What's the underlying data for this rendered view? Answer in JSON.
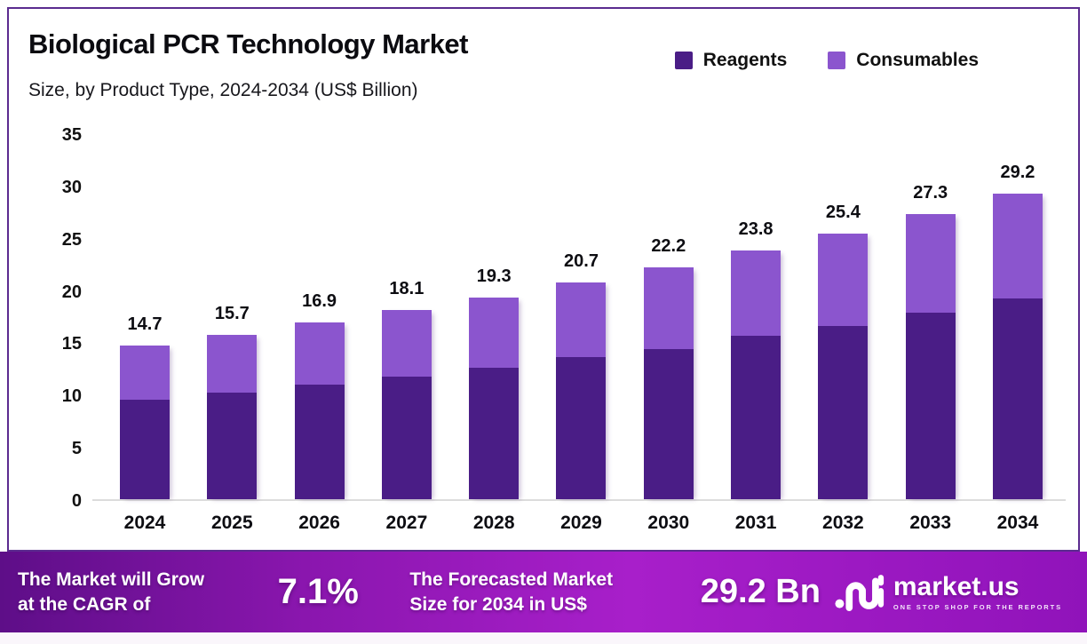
{
  "title": "Biological PCR Technology Market",
  "subtitle": "Size, by Product Type, 2024-2034 (US$ Billion)",
  "colors": {
    "reagents": "#4a1d86",
    "consumables": "#8b55ce",
    "frame_border": "#5b2b8f",
    "axis_line": "#dcdcdc",
    "banner_gradient_left": "#5e0e88",
    "banner_gradient_mid": "#a81fca",
    "banner_gradient_right": "#9013ba",
    "banner_text": "#ffffff"
  },
  "legend": {
    "items": [
      {
        "label": "Reagents",
        "color": "#4a1d86"
      },
      {
        "label": "Consumables",
        "color": "#8b55ce"
      }
    ]
  },
  "chart_data": {
    "type": "bar",
    "stacked": true,
    "title": "Biological PCR Technology Market Size, by Product Type, 2024-2034 (US$ Billion)",
    "xlabel": "",
    "ylabel": "",
    "categories": [
      "2024",
      "2025",
      "2026",
      "2027",
      "2028",
      "2029",
      "2030",
      "2031",
      "2032",
      "2033",
      "2034"
    ],
    "series": [
      {
        "name": "Reagents",
        "color": "#4a1d86",
        "values": [
          9.5,
          10.2,
          11.0,
          11.7,
          12.6,
          13.6,
          14.4,
          15.6,
          16.6,
          17.8,
          19.2
        ]
      },
      {
        "name": "Consumables",
        "color": "#8b55ce",
        "values": [
          5.2,
          5.5,
          5.9,
          6.4,
          6.7,
          7.1,
          7.8,
          8.2,
          8.8,
          9.5,
          10.0
        ]
      }
    ],
    "totals": [
      14.7,
      15.7,
      16.9,
      18.1,
      19.3,
      20.7,
      22.2,
      23.8,
      25.4,
      27.3,
      29.2
    ],
    "total_labels": [
      "14.7",
      "15.7",
      "16.9",
      "18.1",
      "19.3",
      "20.7",
      "22.2",
      "23.8",
      "25.4",
      "27.3",
      "29.2"
    ],
    "ylim": [
      0,
      35
    ],
    "yticks": [
      0,
      5,
      10,
      15,
      20,
      25,
      30,
      35
    ],
    "grid": false,
    "legend_position": "top-right"
  },
  "banner": {
    "cagr_text": [
      "The Market will Grow",
      "at the CAGR of"
    ],
    "cagr_value": "7.1%",
    "forecast_text": [
      "The Forecasted Market",
      "Size for 2034 in US$"
    ],
    "forecast_value": "29.2 Bn",
    "logo": {
      "name": "market.us",
      "tagline": "ONE STOP SHOP FOR THE REPORTS"
    }
  }
}
